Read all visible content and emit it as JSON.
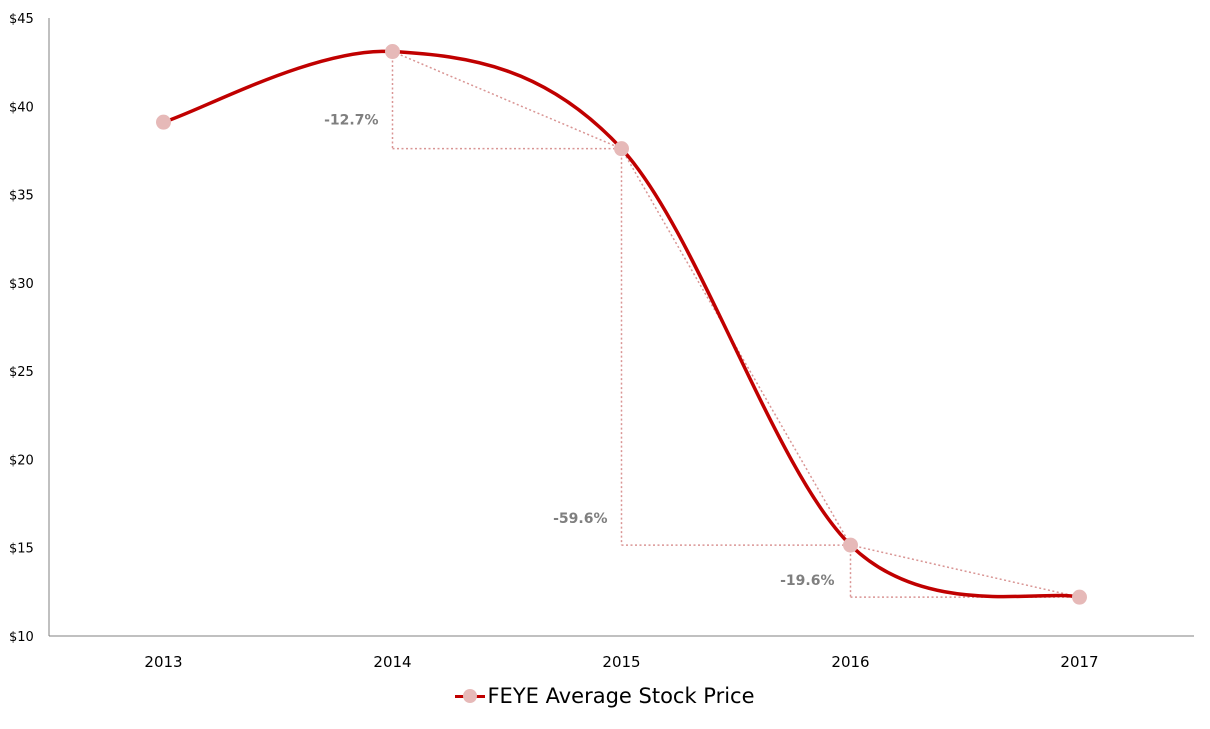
{
  "chart_data": {
    "type": "line",
    "title": "",
    "xlabel": "",
    "ylabel": "",
    "categories": [
      "2013",
      "2014",
      "2015",
      "2016",
      "2017"
    ],
    "series": [
      {
        "name": "FEYE Average Stock Price",
        "values": [
          39.1,
          43.1,
          37.6,
          15.15,
          12.2
        ]
      }
    ],
    "ylim": [
      10,
      45
    ],
    "y_ticks": [
      10,
      15,
      20,
      25,
      30,
      35,
      40,
      45
    ],
    "y_tick_labels": [
      "$10",
      "$15",
      "$20",
      "$25",
      "$30",
      "$35",
      "$40",
      "$45"
    ],
    "grid": false,
    "legend_position": "bottom",
    "annotations": [
      {
        "from": "2014",
        "to": "2015",
        "label": "-12.7%"
      },
      {
        "from": "2015",
        "to": "2016",
        "label": "-59.6%"
      },
      {
        "from": "2016",
        "to": "2017",
        "label": "-19.6%"
      }
    ],
    "colors": {
      "line": "#c00000",
      "marker": "#e6b9b8",
      "annotation_line": "#d99594",
      "annotation_text": "#7f7f7f",
      "axis": "#808080"
    }
  }
}
